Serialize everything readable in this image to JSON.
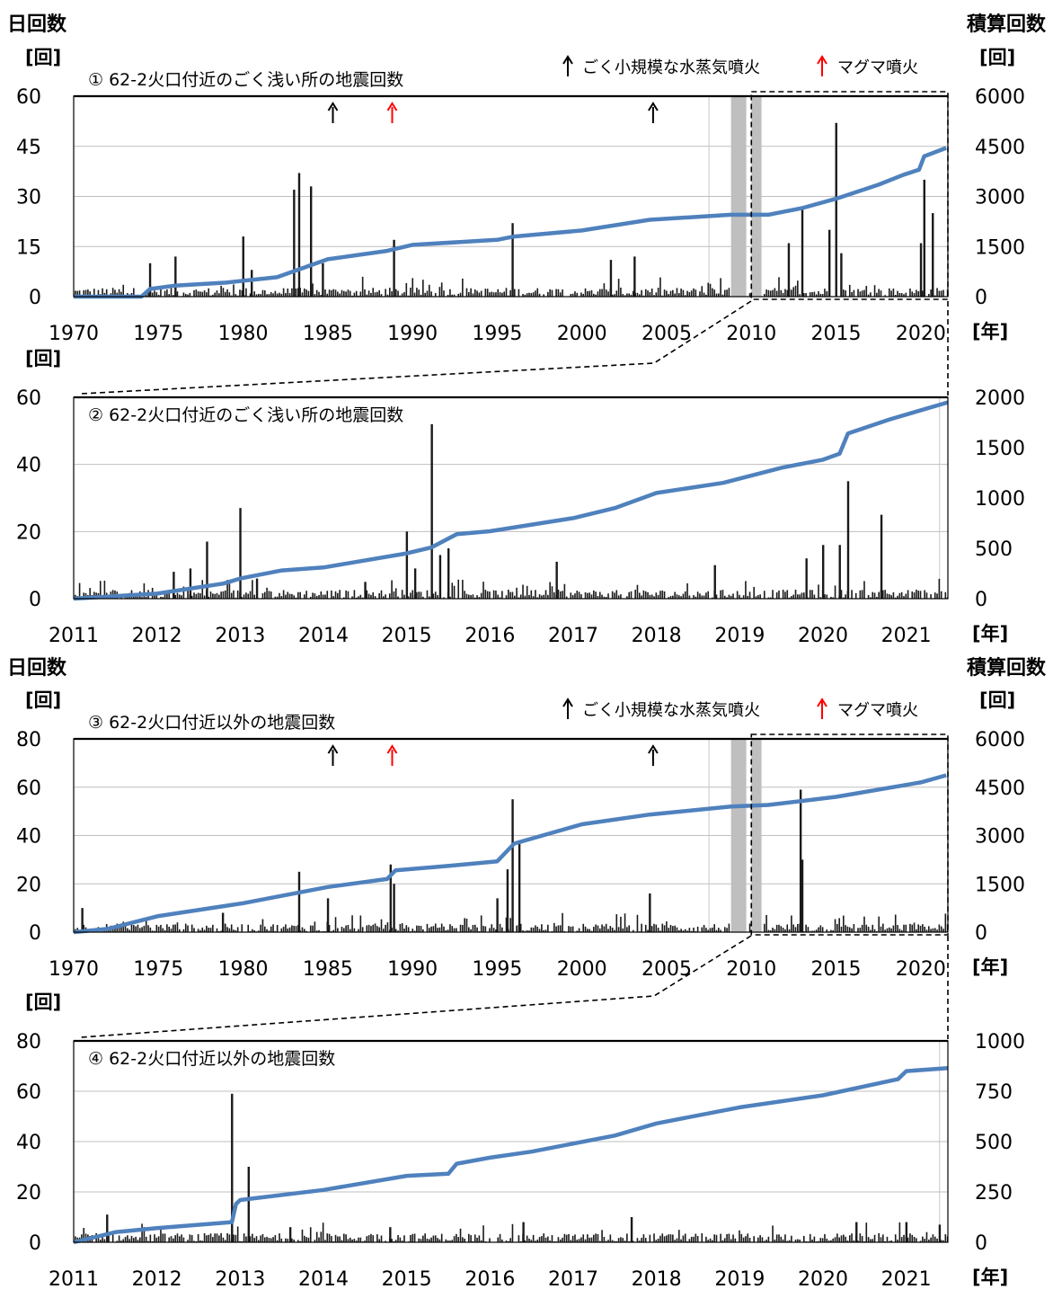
{
  "labels": {
    "left_header": "日回数",
    "right_header": "積算回数",
    "left_unit": "[回]",
    "right_unit": "[回]",
    "year_unit": "[年]",
    "legend_black": "ごく小規模な水蒸気噴火",
    "legend_red": "マグマ噴火"
  },
  "colors": {
    "cumulative_line": "#4f81bd",
    "daily_bars": "#1a1a1a",
    "gap_band": "#bfbfbf",
    "phreatic_arrow": "#000000",
    "magmatic_arrow": "#ff0000",
    "grid": "#bfbfbf"
  },
  "chart_data": [
    {
      "id": "p1",
      "type": "bar+line",
      "title": "① 62-2火口付近のごく浅い所の地震回数",
      "xlim": [
        1970,
        2021.6
      ],
      "xticks": [
        1970,
        1975,
        1980,
        1985,
        1990,
        1995,
        2000,
        2005,
        2010,
        2015,
        2020
      ],
      "ylim_left": [
        0,
        60
      ],
      "yticks_left": [
        0,
        15,
        30,
        45,
        60
      ],
      "ylim_right": [
        0,
        6000
      ],
      "yticks_right": [
        0,
        1500,
        3000,
        4500,
        6000
      ],
      "grid": true,
      "legend": "top-right",
      "daily_count_spikes": [
        [
          1974.5,
          10
        ],
        [
          1976.0,
          12
        ],
        [
          1980.0,
          18
        ],
        [
          1980.5,
          8
        ],
        [
          1983.0,
          32
        ],
        [
          1983.3,
          37
        ],
        [
          1984.0,
          33
        ],
        [
          1984.7,
          10
        ],
        [
          1988.9,
          17
        ],
        [
          1995.9,
          22
        ],
        [
          2001.7,
          11
        ],
        [
          2003.1,
          12
        ],
        [
          2012.2,
          16
        ],
        [
          2013.0,
          26
        ],
        [
          2014.6,
          20
        ],
        [
          2015.0,
          52
        ],
        [
          2015.3,
          13
        ],
        [
          2020.0,
          16
        ],
        [
          2020.2,
          35
        ],
        [
          2020.7,
          25
        ]
      ],
      "cumulative": [
        [
          1970.0,
          0
        ],
        [
          1974.0,
          0
        ],
        [
          1974.5,
          230
        ],
        [
          1976.0,
          330
        ],
        [
          1979.0,
          420
        ],
        [
          1982.0,
          580
        ],
        [
          1983.5,
          850
        ],
        [
          1985.0,
          1120
        ],
        [
          1988.5,
          1370
        ],
        [
          1990.0,
          1550
        ],
        [
          1995.0,
          1700
        ],
        [
          1996.0,
          1800
        ],
        [
          2000.0,
          1980
        ],
        [
          2004.0,
          2300
        ],
        [
          2008.8,
          2450
        ],
        [
          2011.0,
          2450
        ],
        [
          2012.0,
          2550
        ],
        [
          2013.0,
          2650
        ],
        [
          2015.0,
          2930
        ],
        [
          2017.5,
          3350
        ],
        [
          2019.0,
          3650
        ],
        [
          2019.9,
          3800
        ],
        [
          2020.2,
          4200
        ],
        [
          2021.5,
          4450
        ]
      ],
      "eruptions": [
        {
          "x": 1985.3,
          "type": "phreatic"
        },
        {
          "x": 1988.8,
          "type": "magmatic"
        },
        {
          "x": 2004.2,
          "type": "phreatic"
        }
      ],
      "gaps": [
        [
          2008.8,
          2009.7
        ],
        [
          2010.0,
          2010.6
        ]
      ],
      "zoom_box": [
        2010.0,
        2021.6
      ]
    },
    {
      "id": "p2",
      "type": "bar+line",
      "title": "② 62-2火口付近のごく浅い所の地震回数",
      "xlim": [
        2011,
        2021.5
      ],
      "xticks": [
        2011,
        2012,
        2013,
        2014,
        2015,
        2016,
        2017,
        2018,
        2019,
        2020,
        2021
      ],
      "ylim_left": [
        0,
        60
      ],
      "yticks_left": [
        0,
        20,
        40,
        60
      ],
      "ylim_right": [
        0,
        2000
      ],
      "yticks_right": [
        0,
        500,
        1000,
        1500,
        2000
      ],
      "grid": true,
      "daily_count_spikes": [
        [
          2012.2,
          8
        ],
        [
          2012.4,
          9
        ],
        [
          2012.6,
          17
        ],
        [
          2013.0,
          27
        ],
        [
          2013.2,
          6
        ],
        [
          2014.5,
          5
        ],
        [
          2015.0,
          20
        ],
        [
          2015.1,
          9
        ],
        [
          2015.3,
          52
        ],
        [
          2015.4,
          13
        ],
        [
          2015.5,
          15
        ],
        [
          2016.8,
          11
        ],
        [
          2018.7,
          10
        ],
        [
          2019.8,
          12
        ],
        [
          2020.0,
          16
        ],
        [
          2020.3,
          35
        ],
        [
          2020.2,
          16
        ],
        [
          2020.7,
          25
        ]
      ],
      "cumulative": [
        [
          2011.0,
          0
        ],
        [
          2012.0,
          50
        ],
        [
          2012.8,
          150
        ],
        [
          2013.0,
          200
        ],
        [
          2013.5,
          280
        ],
        [
          2014.0,
          310
        ],
        [
          2015.0,
          450
        ],
        [
          2015.3,
          510
        ],
        [
          2015.6,
          640
        ],
        [
          2016.0,
          670
        ],
        [
          2017.0,
          800
        ],
        [
          2017.5,
          900
        ],
        [
          2018.0,
          1050
        ],
        [
          2018.8,
          1150
        ],
        [
          2019.5,
          1300
        ],
        [
          2020.0,
          1380
        ],
        [
          2020.2,
          1440
        ],
        [
          2020.3,
          1640
        ],
        [
          2020.8,
          1780
        ],
        [
          2021.5,
          1950
        ]
      ]
    },
    {
      "id": "p3",
      "type": "bar+line",
      "title": "③ 62-2火口付近以外の地震回数",
      "xlim": [
        1970,
        2021.6
      ],
      "xticks": [
        1970,
        1975,
        1980,
        1985,
        1990,
        1995,
        2000,
        2005,
        2010,
        2015,
        2020
      ],
      "ylim_left": [
        0,
        80
      ],
      "yticks_left": [
        0,
        20,
        40,
        60,
        80
      ],
      "ylim_right": [
        0,
        6000
      ],
      "yticks_right": [
        0,
        1500,
        3000,
        4500,
        6000
      ],
      "grid": true,
      "legend": "top-right",
      "daily_count_spikes": [
        [
          1970.5,
          10
        ],
        [
          1978.8,
          8
        ],
        [
          1983.3,
          25
        ],
        [
          1985.0,
          14
        ],
        [
          1988.7,
          28
        ],
        [
          1988.9,
          20
        ],
        [
          1995.0,
          14
        ],
        [
          1995.6,
          26
        ],
        [
          1995.9,
          55
        ],
        [
          1996.3,
          38
        ],
        [
          2004.0,
          16
        ],
        [
          2012.9,
          59
        ],
        [
          2013.0,
          30
        ]
      ],
      "cumulative": [
        [
          1970.0,
          0
        ],
        [
          1972.0,
          100
        ],
        [
          1975.0,
          500
        ],
        [
          1980.0,
          900
        ],
        [
          1985.0,
          1400
        ],
        [
          1988.5,
          1650
        ],
        [
          1989.0,
          1920
        ],
        [
          1992.0,
          2050
        ],
        [
          1995.0,
          2200
        ],
        [
          1996.0,
          2750
        ],
        [
          2000.0,
          3350
        ],
        [
          2004.0,
          3650
        ],
        [
          2008.8,
          3900
        ],
        [
          2011.0,
          3950
        ],
        [
          2015.0,
          4200
        ],
        [
          2020.0,
          4650
        ],
        [
          2021.5,
          4870
        ]
      ],
      "eruptions": [
        {
          "x": 1985.3,
          "type": "phreatic"
        },
        {
          "x": 1988.8,
          "type": "magmatic"
        },
        {
          "x": 2004.2,
          "type": "phreatic"
        }
      ],
      "gaps": [
        [
          2008.8,
          2009.7
        ],
        [
          2010.0,
          2010.6
        ]
      ],
      "zoom_box": [
        2010.0,
        2021.6
      ]
    },
    {
      "id": "p4",
      "type": "bar+line",
      "title": "④ 62-2火口付近以外の地震回数",
      "xlim": [
        2011,
        2021.5
      ],
      "xticks": [
        2011,
        2012,
        2013,
        2014,
        2015,
        2016,
        2017,
        2018,
        2019,
        2020,
        2021
      ],
      "ylim_left": [
        0,
        80
      ],
      "yticks_left": [
        0,
        20,
        40,
        60,
        80
      ],
      "ylim_right": [
        0,
        1000
      ],
      "yticks_right": [
        0,
        250,
        500,
        750,
        1000
      ],
      "grid": true,
      "daily_count_spikes": [
        [
          2011.4,
          11
        ],
        [
          2012.9,
          59
        ],
        [
          2013.1,
          30
        ],
        [
          2013.6,
          6
        ],
        [
          2014.8,
          6
        ],
        [
          2016.4,
          8
        ],
        [
          2017.7,
          10
        ],
        [
          2020.4,
          8
        ],
        [
          2021.0,
          8
        ],
        [
          2021.4,
          7
        ]
      ],
      "cumulative": [
        [
          2011.0,
          0
        ],
        [
          2011.5,
          50
        ],
        [
          2012.0,
          70
        ],
        [
          2012.9,
          100
        ],
        [
          2012.95,
          190
        ],
        [
          2013.0,
          210
        ],
        [
          2014.0,
          260
        ],
        [
          2015.0,
          330
        ],
        [
          2015.5,
          340
        ],
        [
          2015.6,
          390
        ],
        [
          2016.0,
          420
        ],
        [
          2016.5,
          450
        ],
        [
          2017.5,
          530
        ],
        [
          2018.0,
          590
        ],
        [
          2019.0,
          670
        ],
        [
          2020.0,
          730
        ],
        [
          2020.9,
          810
        ],
        [
          2021.0,
          850
        ],
        [
          2021.5,
          865
        ]
      ]
    }
  ]
}
